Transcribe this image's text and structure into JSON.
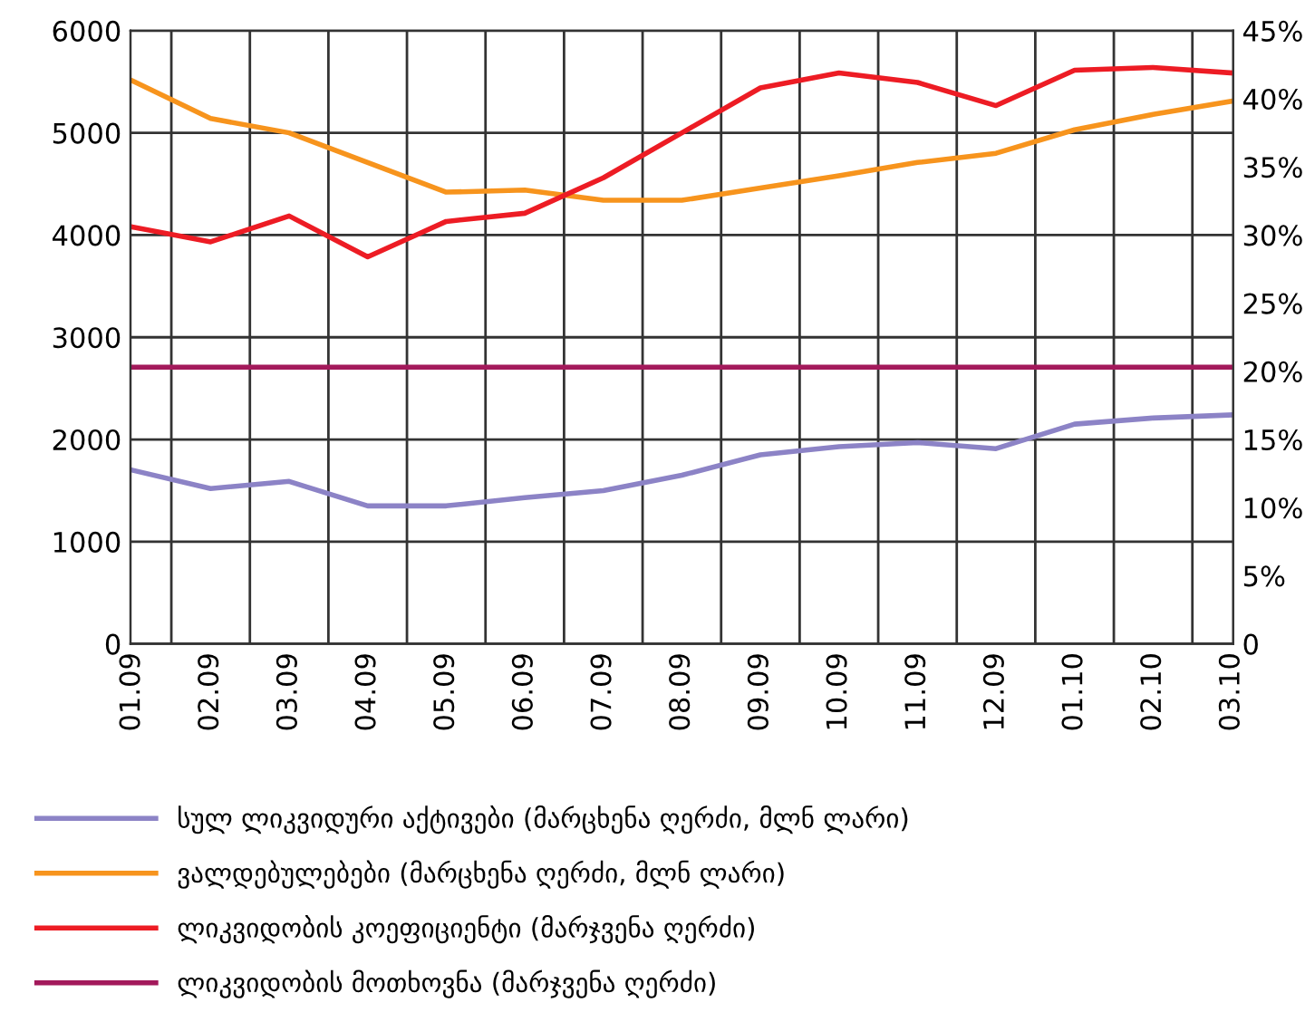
{
  "chart_data": {
    "type": "line",
    "categories": [
      "01.09",
      "02.09",
      "03.09",
      "04.09",
      "05.09",
      "06.09",
      "07.09",
      "08.09",
      "09.09",
      "10.09",
      "11.09",
      "12.09",
      "01.10",
      "02.10",
      "03.10"
    ],
    "series": [
      {
        "name": "სულ ლიკვიდური აქტივები (მარცხენა ღერძი, მლნ ლარი)",
        "color": "#8c83c6",
        "values": [
          1700,
          1520,
          1590,
          1350,
          1350,
          1430,
          1500,
          1650,
          1850,
          1930,
          1970,
          1910,
          2150,
          2210,
          2240
        ]
      },
      {
        "name": "ვალდებულებები (მარცხენა ღერძი, მლნ ლარი)",
        "color": "#f7941d",
        "values": [
          5510,
          5140,
          5000,
          4710,
          4420,
          4440,
          4340,
          4340,
          4460,
          4580,
          4710,
          4800,
          5030,
          5180,
          5310
        ]
      },
      {
        "name": "ლიკვიდობის კოეფიციენტი (მარჯვენა ღერძი)",
        "color": "#ed1c24",
        "axis": "y2",
        "values": [
          30.6,
          29.5,
          31.4,
          28.4,
          31,
          31.6,
          34.2,
          37.5,
          40.8,
          41.9,
          41.2,
          39.5,
          42.1,
          42.3,
          41.9
        ]
      },
      {
        "name": "ლიკვიდობის მოთხოვნა (მარჯვენა ღერძი)",
        "color": "#a3195b",
        "axis": "y2",
        "values": [
          20.3,
          20.3,
          20.3,
          20.3,
          20.3,
          20.3,
          20.3,
          20.3,
          20.3,
          20.3,
          20.3,
          20.3,
          20.3,
          20.3,
          20.3
        ]
      }
    ],
    "ylim": [
      0,
      6000
    ],
    "yticks": [
      0,
      1000,
      2000,
      3000,
      4000,
      5000,
      6000
    ],
    "y2lim": [
      0,
      45
    ],
    "y2ticks": [
      {
        "value": 0,
        "label": "0"
      },
      {
        "value": 5,
        "label": "5%"
      },
      {
        "value": 10,
        "label": "10%"
      },
      {
        "value": 15,
        "label": "15%"
      },
      {
        "value": 20,
        "label": "20%"
      },
      {
        "value": 25,
        "label": "25%"
      },
      {
        "value": 30,
        "label": "30%"
      },
      {
        "value": 35,
        "label": "35%"
      },
      {
        "value": 40,
        "label": "40%"
      },
      {
        "value": 45,
        "label": "45%"
      }
    ],
    "grid": true,
    "legend": "bottom",
    "marker": "none",
    "line_style": "solid"
  }
}
